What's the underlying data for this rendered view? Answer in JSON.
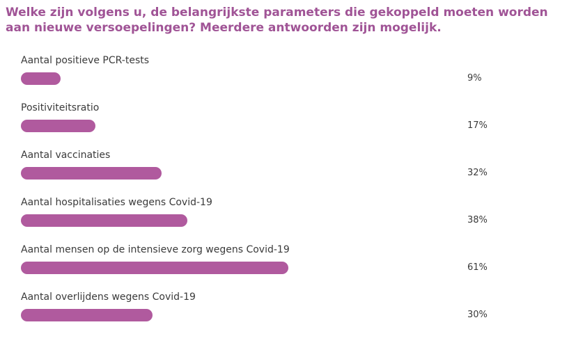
{
  "chart_data": {
    "type": "bar",
    "orientation": "horizontal",
    "title": "Welke zijn volgens u, de belangrijkste parameters die gekoppeld moeten worden aan nieuwe versoepelingen? Meerdere antwoorden zijn mogelijk.",
    "categories": [
      "Aantal positieve PCR-tests",
      "Positiviteitsratio",
      "Aantal vaccinaties",
      "Aantal hospitalisaties wegens Covid-19",
      "Aantal mensen op de intensieve zorg wegens Covid-19",
      "Aantal overlijdens wegens Covid-19"
    ],
    "values": [
      9,
      17,
      32,
      38,
      61,
      30
    ],
    "value_labels": [
      "9%",
      "17%",
      "32%",
      "38%",
      "61%",
      "30%"
    ],
    "unit": "%",
    "xlim": [
      0,
      100
    ],
    "grid": false,
    "legend": "none",
    "bar_color": "#b05a9e",
    "title_color": "#a05496"
  }
}
